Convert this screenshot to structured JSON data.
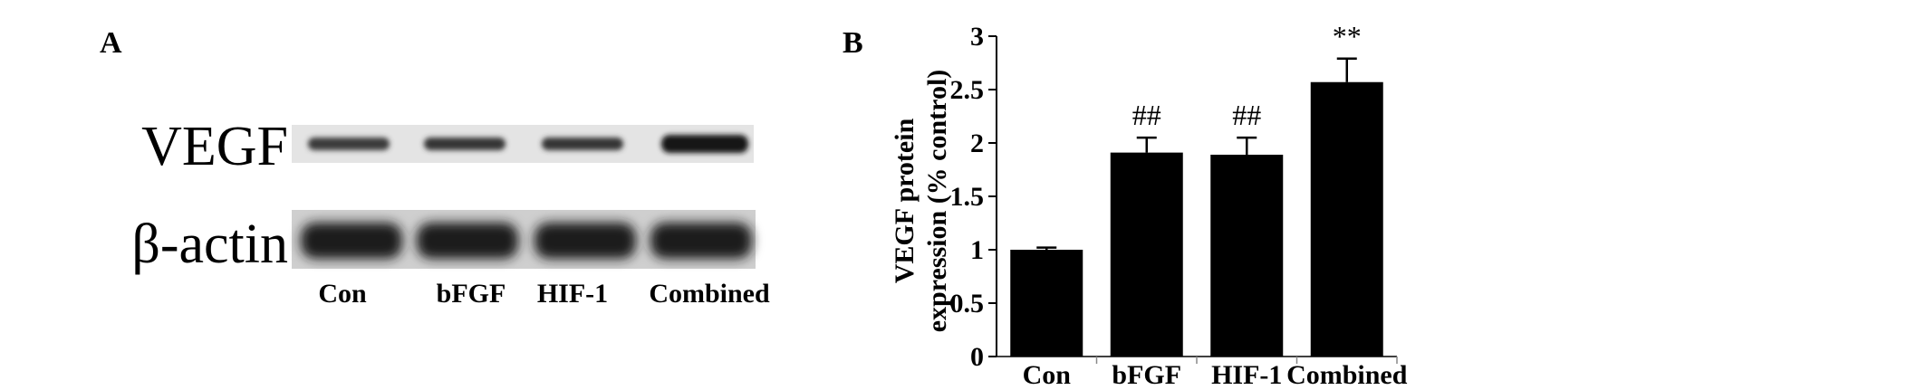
{
  "panel_a": {
    "label": "A",
    "row_labels": [
      "VEGF",
      "β-actin"
    ],
    "lane_labels": [
      "Con",
      "bFGF",
      "HIF-1",
      "Combined"
    ]
  },
  "panel_b": {
    "label": "B"
  },
  "chart_data": {
    "type": "bar",
    "categories": [
      "Con",
      "bFGF",
      "HIF-1",
      "Combined"
    ],
    "values": [
      1.0,
      1.91,
      1.89,
      2.57
    ],
    "errors": [
      0.02,
      0.14,
      0.16,
      0.22
    ],
    "annotations": [
      "",
      "##",
      "##",
      "**"
    ],
    "title": "",
    "xlabel": "",
    "ylabel_lines": [
      "VEGF protein",
      "expression (% control)"
    ],
    "ylim": [
      0,
      3
    ],
    "yticks": [
      0,
      0.5,
      1,
      1.5,
      2,
      2.5,
      3
    ],
    "ytick_labels": [
      "0",
      "0.5",
      "1",
      "1.5",
      "2",
      "2.5",
      "3"
    ],
    "bar_color": "#000000",
    "grid": false,
    "legend": "none"
  }
}
